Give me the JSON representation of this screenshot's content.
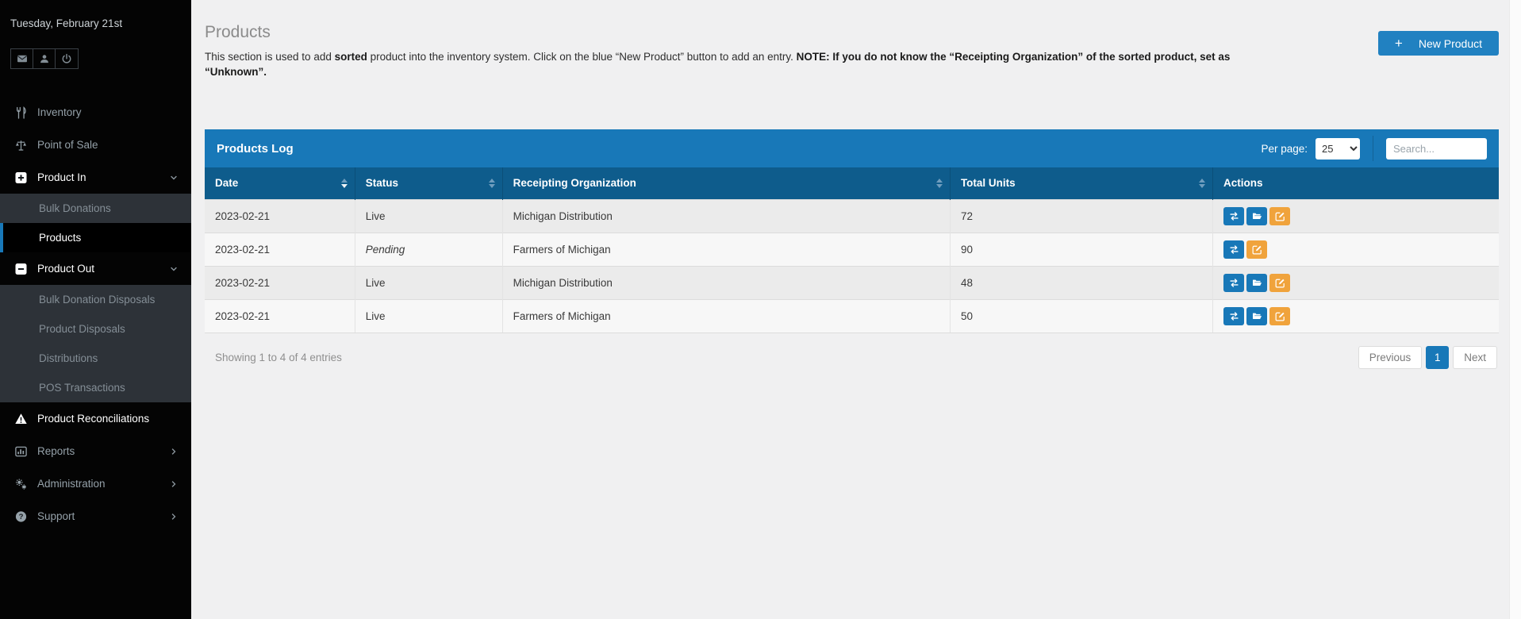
{
  "sidebar": {
    "date": "Tuesday, February 21st",
    "quick_actions": [
      {
        "name": "mail",
        "icon": "envelope-icon"
      },
      {
        "name": "user",
        "icon": "user-icon"
      },
      {
        "name": "power",
        "icon": "power-icon"
      }
    ],
    "menu": [
      {
        "label": "Inventory",
        "type": "top",
        "icon": "utensils-icon"
      },
      {
        "label": "Point of Sale",
        "type": "top",
        "icon": "scale-icon"
      },
      {
        "label": "Product In",
        "type": "top",
        "icon": "plus-square-icon",
        "bright": true,
        "chevron": "down"
      },
      {
        "label": "Bulk Donations",
        "type": "sub"
      },
      {
        "label": "Products",
        "type": "sub",
        "active": true
      },
      {
        "label": "Product Out",
        "type": "top",
        "icon": "minus-square-icon",
        "bright": true,
        "chevron": "down"
      },
      {
        "label": "Bulk Donation Disposals",
        "type": "sub"
      },
      {
        "label": "Product Disposals",
        "type": "sub"
      },
      {
        "label": "Distributions",
        "type": "sub"
      },
      {
        "label": "POS Transactions",
        "type": "sub"
      },
      {
        "label": "Product Reconciliations",
        "type": "top",
        "icon": "warning-icon",
        "bright": true
      },
      {
        "label": "Reports",
        "type": "top",
        "icon": "chart-icon",
        "chevron": "right"
      },
      {
        "label": "Administration",
        "type": "top",
        "icon": "gears-icon",
        "chevron": "right"
      },
      {
        "label": "Support",
        "type": "top",
        "icon": "question-icon",
        "chevron": "right"
      }
    ]
  },
  "page": {
    "title": "Products",
    "description": [
      {
        "text": "This section is used to add ",
        "bold": false
      },
      {
        "text": "sorted",
        "bold": true
      },
      {
        "text": " product into the inventory system. Click on the blue “New Product” button to add an entry. ",
        "bold": false
      },
      {
        "text": "NOTE: If you do not know the “Receipting Organization” of the sorted product, set as “Unknown”.",
        "bold": true
      }
    ],
    "new_product_button": "New Product"
  },
  "panel": {
    "title": "Products Log",
    "per_page_label": "Per page:",
    "per_page_value": "25",
    "search_placeholder": "Search...",
    "table": {
      "columns": [
        {
          "label": "Date",
          "sortable": true,
          "sort": "desc"
        },
        {
          "label": "Status",
          "sortable": true
        },
        {
          "label": "Receipting Organization",
          "sortable": true
        },
        {
          "label": "Total Units",
          "sortable": true
        },
        {
          "label": "Actions",
          "sortable": false
        }
      ],
      "rows": [
        {
          "date": "2023-02-21",
          "status": "Live",
          "organization": "Michigan Distribution",
          "total_units": "72",
          "actions": [
            "transfer",
            "folder",
            "edit"
          ]
        },
        {
          "date": "2023-02-21",
          "status": "Pending",
          "organization": "Farmers of Michigan",
          "total_units": "90",
          "actions": [
            "transfer",
            "edit"
          ]
        },
        {
          "date": "2023-02-21",
          "status": "Live",
          "organization": "Michigan Distribution",
          "total_units": "48",
          "actions": [
            "transfer",
            "folder",
            "edit"
          ]
        },
        {
          "date": "2023-02-21",
          "status": "Live",
          "organization": "Farmers of Michigan",
          "total_units": "50",
          "actions": [
            "transfer",
            "folder",
            "edit"
          ]
        }
      ]
    },
    "footer": {
      "showing_text": "Showing 1 to 4 of 4 entries",
      "pagination": {
        "previous": "Previous",
        "page": "1",
        "next": "Next"
      }
    }
  },
  "colors": {
    "panel_header_blue": "#1878b8",
    "table_header_blue": "#0e5c8c",
    "button_blue": "#2181c1",
    "action_orange": "#f0a33c",
    "sidebar_black": "#040404",
    "sidebar_submenu": "#2d3238",
    "page_background": "#f0f0f1"
  }
}
